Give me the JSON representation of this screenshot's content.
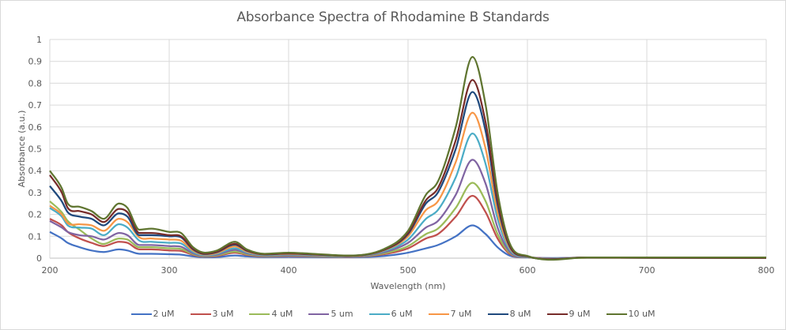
{
  "chart_data": {
    "type": "line",
    "title": "Absorbance Spectra of Rhodamine B Standards",
    "xlabel": "Wavelength (nm)",
    "ylabel": "Absorbance (a.u.)",
    "xlim": [
      200,
      800
    ],
    "ylim": [
      0,
      1
    ],
    "x_ticks": [
      "200",
      "300",
      "400",
      "500",
      "600",
      "700",
      "800"
    ],
    "y_ticks": [
      "0",
      "0.1",
      "0.2",
      "0.3",
      "0.4",
      "0.5",
      "0.6",
      "0.7",
      "0.8",
      "0.9",
      "1"
    ],
    "grid": true,
    "legend_position": "bottom",
    "x": [
      200,
      210,
      215,
      225,
      235,
      245,
      258,
      265,
      275,
      285,
      300,
      310,
      320,
      330,
      340,
      355,
      365,
      380,
      400,
      420,
      450,
      480,
      500,
      515,
      525,
      540,
      554,
      565,
      575,
      585,
      600,
      650,
      700,
      800
    ],
    "series": [
      {
        "name": "2 uM",
        "color": "#4472c4",
        "values": [
          0.12,
          0.09,
          0.07,
          0.05,
          0.035,
          0.028,
          0.04,
          0.035,
          0.02,
          0.02,
          0.018,
          0.016,
          0.008,
          0.004,
          0.005,
          0.012,
          0.008,
          0.005,
          0.006,
          0.005,
          0.004,
          0.01,
          0.025,
          0.045,
          0.06,
          0.1,
          0.15,
          0.11,
          0.05,
          0.012,
          0.003,
          0.002,
          0.002,
          0.001
        ]
      },
      {
        "name": "3 uM",
        "color": "#c0504d",
        "values": [
          0.18,
          0.15,
          0.12,
          0.09,
          0.07,
          0.055,
          0.075,
          0.07,
          0.04,
          0.04,
          0.035,
          0.033,
          0.015,
          0.007,
          0.01,
          0.025,
          0.015,
          0.008,
          0.01,
          0.008,
          0.006,
          0.018,
          0.045,
          0.09,
          0.11,
          0.19,
          0.285,
          0.21,
          0.09,
          0.02,
          0.004,
          0.002,
          0.002,
          0.001
        ]
      },
      {
        "name": "4 uM",
        "color": "#9bbb59",
        "values": [
          0.26,
          0.21,
          0.17,
          0.13,
          0.09,
          0.065,
          0.09,
          0.085,
          0.05,
          0.05,
          0.045,
          0.042,
          0.018,
          0.009,
          0.013,
          0.03,
          0.018,
          0.01,
          0.012,
          0.01,
          0.007,
          0.022,
          0.055,
          0.11,
          0.135,
          0.23,
          0.345,
          0.26,
          0.11,
          0.025,
          0.004,
          0.002,
          0.002,
          0.001
        ]
      },
      {
        "name": "5 um",
        "color": "#8064a2",
        "values": [
          0.17,
          0.14,
          0.12,
          0.105,
          0.1,
          0.085,
          0.115,
          0.105,
          0.06,
          0.06,
          0.055,
          0.052,
          0.022,
          0.011,
          0.016,
          0.038,
          0.022,
          0.012,
          0.014,
          0.012,
          0.008,
          0.027,
          0.07,
          0.14,
          0.17,
          0.29,
          0.45,
          0.34,
          0.14,
          0.03,
          0.005,
          0.003,
          0.002,
          0.001
        ]
      },
      {
        "name": "6 uM",
        "color": "#4bacc6",
        "values": [
          0.23,
          0.19,
          0.15,
          0.14,
          0.135,
          0.105,
          0.155,
          0.14,
          0.08,
          0.075,
          0.07,
          0.067,
          0.028,
          0.013,
          0.02,
          0.045,
          0.026,
          0.014,
          0.017,
          0.014,
          0.009,
          0.032,
          0.085,
          0.18,
          0.22,
          0.37,
          0.57,
          0.43,
          0.18,
          0.04,
          0.006,
          0.003,
          0.002,
          0.001
        ]
      },
      {
        "name": "7 uM",
        "color": "#f79646",
        "values": [
          0.24,
          0.2,
          0.16,
          0.155,
          0.15,
          0.125,
          0.18,
          0.165,
          0.095,
          0.09,
          0.085,
          0.08,
          0.034,
          0.016,
          0.024,
          0.054,
          0.03,
          0.016,
          0.019,
          0.016,
          0.01,
          0.036,
          0.1,
          0.22,
          0.26,
          0.44,
          0.665,
          0.5,
          0.21,
          0.048,
          0.007,
          0.003,
          0.002,
          0.001
        ]
      },
      {
        "name": "8 uM",
        "color": "#1f497d",
        "values": [
          0.33,
          0.26,
          0.21,
          0.19,
          0.18,
          0.15,
          0.205,
          0.19,
          0.105,
          0.105,
          0.1,
          0.095,
          0.04,
          0.019,
          0.028,
          0.062,
          0.034,
          0.017,
          0.021,
          0.017,
          0.011,
          0.038,
          0.11,
          0.25,
          0.3,
          0.5,
          0.76,
          0.58,
          0.245,
          0.055,
          0.008,
          0.003,
          0.002,
          0.001
        ]
      },
      {
        "name": "9 uM",
        "color": "#772c2a",
        "values": [
          0.38,
          0.3,
          0.23,
          0.215,
          0.2,
          0.165,
          0.225,
          0.21,
          0.115,
          0.115,
          0.105,
          0.1,
          0.043,
          0.021,
          0.03,
          0.066,
          0.036,
          0.018,
          0.022,
          0.018,
          0.011,
          0.039,
          0.115,
          0.265,
          0.32,
          0.54,
          0.815,
          0.62,
          0.265,
          0.06,
          0.009,
          0.003,
          0.002,
          0.001
        ]
      },
      {
        "name": "10 uM",
        "color": "#5f7530",
        "values": [
          0.4,
          0.32,
          0.25,
          0.235,
          0.215,
          0.18,
          0.25,
          0.23,
          0.13,
          0.135,
          0.12,
          0.115,
          0.05,
          0.025,
          0.035,
          0.075,
          0.04,
          0.02,
          0.025,
          0.02,
          0.012,
          0.042,
          0.125,
          0.29,
          0.35,
          0.6,
          0.92,
          0.7,
          0.3,
          0.07,
          0.01,
          0.003,
          0.003,
          0.003
        ]
      }
    ]
  }
}
